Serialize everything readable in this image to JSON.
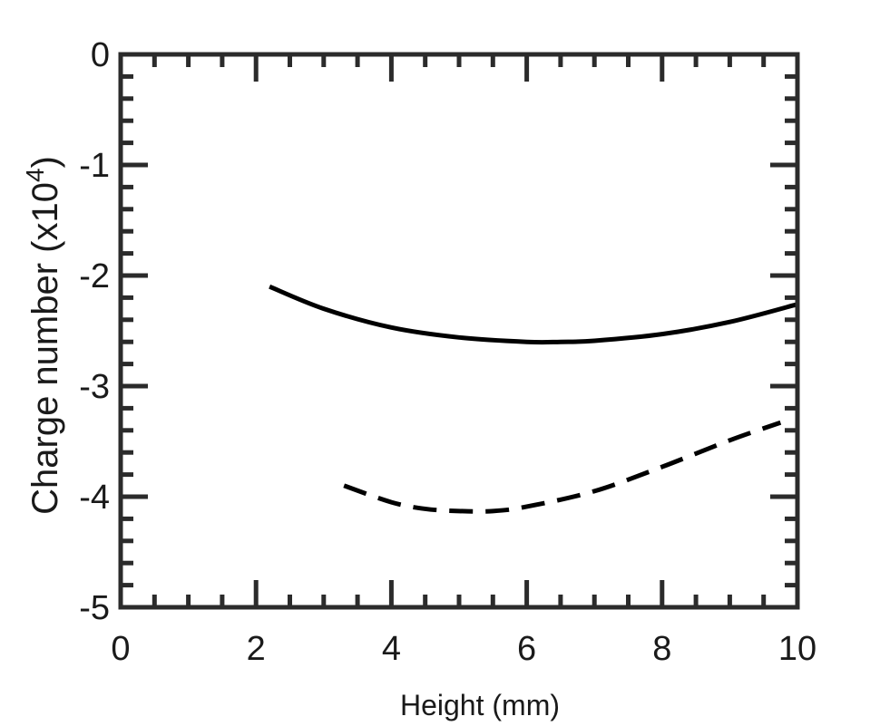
{
  "chart_data": {
    "type": "line",
    "xlabel": "Height (mm)",
    "ylabel": {
      "prefix": "Charge number (x10",
      "superscript": "4",
      "suffix": ")"
    },
    "xlim": [
      0,
      10
    ],
    "ylim": [
      -5,
      0
    ],
    "x_ticks": [
      "0",
      "2",
      "4",
      "6",
      "8",
      "10"
    ],
    "y_ticks": [
      "0",
      "-1",
      "-2",
      "-3",
      "-4",
      "-5"
    ],
    "x_tick_values": [
      0,
      2,
      4,
      6,
      8,
      10
    ],
    "y_tick_values": [
      0,
      -1,
      -2,
      -3,
      -4,
      -5
    ],
    "grid": false,
    "series": [
      {
        "style": "solid",
        "color": "#000000",
        "x": [
          2.2,
          3.0,
          4.0,
          5.0,
          6.0,
          6.5,
          7.0,
          8.0,
          9.0,
          10.0
        ],
        "y": [
          -2.1,
          -2.3,
          -2.47,
          -2.56,
          -2.6,
          -2.6,
          -2.59,
          -2.53,
          -2.42,
          -2.26
        ]
      },
      {
        "style": "dashed",
        "color": "#000000",
        "x": [
          3.3,
          4.0,
          4.5,
          5.0,
          5.5,
          6.0,
          7.0,
          8.0,
          9.0,
          9.75
        ],
        "y": [
          -3.9,
          -4.05,
          -4.11,
          -4.13,
          -4.13,
          -4.09,
          -3.95,
          -3.73,
          -3.49,
          -3.33
        ]
      }
    ]
  }
}
